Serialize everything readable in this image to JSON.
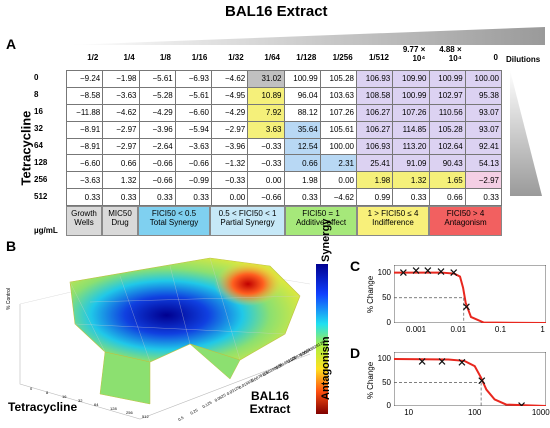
{
  "title": "BAL16 Extract",
  "panel_labels": {
    "a": "A",
    "b": "B",
    "c": "C",
    "d": "D"
  },
  "panel_a": {
    "col_headers": [
      "1/2",
      "1/4",
      "1/8",
      "1/16",
      "1/32",
      "1/64",
      "1/128",
      "1/256",
      "1/512",
      "9.77 × 10⁴",
      "4.88 × 10⁴",
      "0"
    ],
    "dilutions_label": "Dilutions",
    "row_axis_label": "Tetracycline",
    "unit_label": "µg/mL",
    "row_headers": [
      "0",
      "8",
      "16",
      "32",
      "64",
      "128",
      "256",
      "512"
    ],
    "rows": [
      [
        "−9.24",
        "−1.98",
        "−5.61",
        "−6.93",
        "−4.62",
        "31.02",
        "100.99",
        "105.28",
        "106.93",
        "109.90",
        "100.99",
        "100.00"
      ],
      [
        "−8.58",
        "−3.63",
        "−5.28",
        "−5.61",
        "−4.95",
        "10.89",
        "96.04",
        "103.63",
        "108.58",
        "100.99",
        "102.97",
        "95.38"
      ],
      [
        "−11.88",
        "−4.62",
        "−4.29",
        "−6.60",
        "−4.29",
        "7.92",
        "88.12",
        "107.26",
        "106.27",
        "107.26",
        "110.56",
        "93.07"
      ],
      [
        "−8.91",
        "−2.97",
        "−3.96",
        "−5.94",
        "−2.97",
        "3.63",
        "35.64",
        "105.61",
        "106.27",
        "114.85",
        "105.28",
        "93.07"
      ],
      [
        "−8.91",
        "−2.97",
        "−2.64",
        "−3.63",
        "−3.96",
        "−0.33",
        "12.54",
        "100.00",
        "106.93",
        "113.20",
        "102.64",
        "92.41"
      ],
      [
        "−6.60",
        "0.66",
        "−0.66",
        "−0.66",
        "−1.32",
        "−0.33",
        "0.66",
        "2.31",
        "25.41",
        "91.09",
        "90.43",
        "54.13"
      ],
      [
        "−3.63",
        "1.32",
        "−0.66",
        "−0.99",
        "−0.33",
        "0.00",
        "1.98",
        "0.00",
        "1.98",
        "1.32",
        "1.65",
        "−2.97"
      ],
      [
        "0.33",
        "0.33",
        "0.33",
        "0.33",
        "0.00",
        "−0.66",
        "0.33",
        "−4.62",
        "0.99",
        "0.33",
        "0.66",
        "0.33"
      ]
    ],
    "colors": {
      "green": "#b6f0a0",
      "grey": "#c0c0c0",
      "yellow": "#f5f07a",
      "blue": "#b8d8f4",
      "lavender": "#dcd2f2",
      "pink": "#f4cfe4",
      "white": "#ffffff"
    },
    "legend": [
      {
        "line1": "Growth",
        "line2": "Wells",
        "color": "#d9d9d9"
      },
      {
        "line1": "MIC50",
        "line2": "Drug",
        "color": "#d9d9d9"
      },
      {
        "line1": "FICI50 < 0.5",
        "line2": "Total Synergy",
        "color": "#7fd0f0"
      },
      {
        "line1": "0.5 < FICI50 < 1",
        "line2": "Partial Synergy",
        "color": "#c6e8f7"
      },
      {
        "line1": "FICI50 = 1",
        "line2": "Additive effect",
        "color": "#a6e87a"
      },
      {
        "line1": "1 > FICI50 ≤ 4",
        "line2": "Indifference",
        "color": "#f8f07a"
      },
      {
        "line1": "FICI50 > 4",
        "line2": "Antagonism",
        "color": "#f26060"
      }
    ]
  },
  "panel_b": {
    "x_label": "Tetracycline",
    "y_label": "BAL16 Extract",
    "z_label": "% Control",
    "colorbar_top": "Synergy",
    "colorbar_bottom": "Antagonism",
    "x_ticks": [
      "0",
      "8",
      "16",
      "32",
      "64",
      "128",
      "256",
      "512"
    ],
    "y_ticks": [
      "0.5",
      "0.25",
      "0.125",
      "0.0625",
      "0.03125",
      "0.015625",
      "0.0078125",
      "0.00390625",
      "0.001953125",
      "0.0009765625",
      "0.00048828125"
    ]
  },
  "chart_data": [
    {
      "type": "line",
      "title": "C",
      "xlabel": "",
      "ylabel": "% Change",
      "x_scale": "log",
      "xlim": [
        0.0003,
        1.2
      ],
      "ylim": [
        0,
        115
      ],
      "x_tick_labels": [
        "0.001",
        "0.01",
        "0.1",
        "1"
      ],
      "y_tick_labels": [
        "0",
        "50",
        "100"
      ],
      "series": [
        {
          "markers": "x",
          "x": [
            0.0005,
            0.001,
            0.0019,
            0.0039,
            0.0078,
            0.0156
          ],
          "y": [
            100,
            104,
            104,
            102,
            100,
            32
          ]
        },
        {
          "curve": "fit",
          "color": "#e8271e",
          "x": [
            0.0003,
            0.004,
            0.008,
            0.011,
            0.013,
            0.015,
            0.02,
            0.04,
            1.2
          ],
          "y": [
            100,
            100,
            98,
            92,
            70,
            40,
            12,
            1,
            0
          ]
        }
      ],
      "ic50_x": 0.0135
    },
    {
      "type": "line",
      "title": "D",
      "xlabel": "",
      "ylabel": "% Change",
      "x_scale": "log",
      "xlim": [
        6,
        1200
      ],
      "ylim": [
        0,
        115
      ],
      "x_tick_labels": [
        "10",
        "100",
        "1000"
      ],
      "y_tick_labels": [
        "0",
        "50",
        "100"
      ],
      "series": [
        {
          "markers": "x",
          "x": [
            16,
            32,
            64,
            128,
            512
          ],
          "y": [
            95,
            95,
            93,
            54,
            1
          ]
        },
        {
          "curve": "fit",
          "color": "#e8271e",
          "x": [
            6,
            40,
            70,
            100,
            125,
            150,
            200,
            300,
            1200
          ],
          "y": [
            100,
            99,
            96,
            85,
            60,
            35,
            14,
            3,
            0
          ]
        }
      ],
      "ic50_x": 125
    }
  ]
}
